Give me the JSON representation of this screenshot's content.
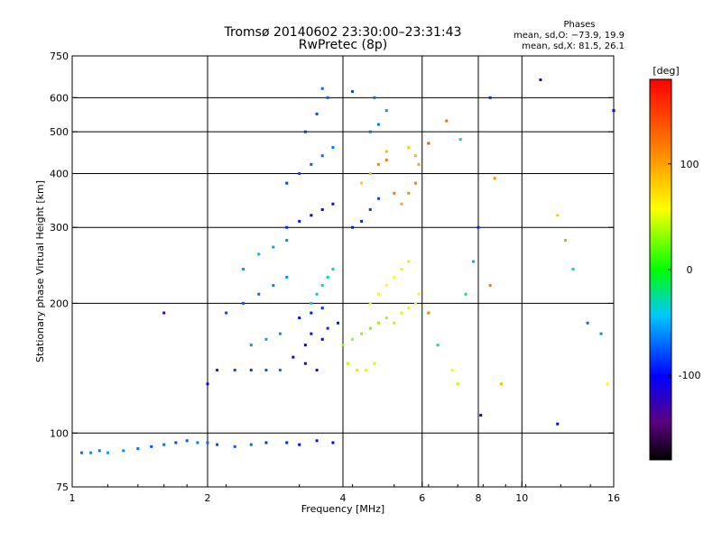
{
  "header": {
    "title_line1": "Tromsø 20140602 23:30:00–23:31:43",
    "title_line2": "RwPretec (8p)"
  },
  "stats": {
    "heading": "Phases",
    "line1": "mean, sd,O: −73.9, 19.9",
    "line2": "mean, sd,X:  81.5, 26.1"
  },
  "chart_data": {
    "type": "scatter",
    "xlabel": "Frequency [MHz]",
    "ylabel": "Stationary phase Virtual Height [km]",
    "xscale": "log",
    "yscale": "log",
    "xlim": [
      1,
      16
    ],
    "ylim": [
      75,
      750
    ],
    "x_ticks": [
      1,
      2,
      4,
      6,
      8,
      10,
      16
    ],
    "x_tick_labels": [
      "1",
      "2",
      "4",
      "6",
      "8",
      "10",
      "16"
    ],
    "x_grid": [
      2,
      4,
      6,
      8,
      10
    ],
    "y_ticks": [
      75,
      100,
      200,
      300,
      400,
      500,
      600,
      750
    ],
    "y_tick_labels": [
      "75",
      "100",
      "200",
      "300",
      "400",
      "500",
      "600",
      "750"
    ],
    "y_grid": [
      100,
      200,
      300,
      400,
      500,
      600
    ],
    "colorbar": {
      "label": "[deg]",
      "range": [
        -180,
        180
      ],
      "ticks": [
        100,
        0,
        -100
      ],
      "tick_labels": [
        "100",
        "0",
        "-100"
      ]
    },
    "series": [
      {
        "points": [
          [
            1.05,
            90,
            -70
          ],
          [
            1.1,
            90,
            -60
          ],
          [
            1.15,
            91,
            -65
          ],
          [
            1.2,
            90,
            -55
          ],
          [
            1.3,
            91,
            -60
          ],
          [
            1.4,
            92,
            -70
          ],
          [
            1.5,
            93,
            -75
          ],
          [
            1.6,
            94,
            -70
          ],
          [
            1.7,
            95,
            -80
          ],
          [
            1.8,
            96,
            -75
          ],
          [
            1.9,
            95,
            -65
          ],
          [
            2.0,
            95,
            -70
          ],
          [
            2.1,
            94,
            -80
          ],
          [
            2.3,
            93,
            -75
          ],
          [
            2.5,
            94,
            -70
          ],
          [
            2.7,
            95,
            -85
          ],
          [
            3.0,
            95,
            -90
          ],
          [
            3.2,
            94,
            -100
          ],
          [
            3.5,
            96,
            -95
          ],
          [
            3.8,
            95,
            -105
          ],
          [
            2.0,
            130,
            -100
          ],
          [
            2.1,
            140,
            -90
          ],
          [
            2.3,
            140,
            -80
          ],
          [
            2.5,
            140,
            -85
          ],
          [
            2.7,
            140,
            -75
          ],
          [
            2.9,
            140,
            -70
          ],
          [
            2.5,
            160,
            -60
          ],
          [
            2.7,
            165,
            -55
          ],
          [
            2.9,
            170,
            -60
          ],
          [
            2.2,
            190,
            -80
          ],
          [
            2.4,
            200,
            -75
          ],
          [
            2.6,
            210,
            -70
          ],
          [
            2.8,
            220,
            -65
          ],
          [
            3.0,
            230,
            -60
          ],
          [
            2.4,
            240,
            -55
          ],
          [
            2.6,
            260,
            -50
          ],
          [
            2.8,
            270,
            -55
          ],
          [
            3.0,
            280,
            -60
          ],
          [
            3.1,
            150,
            -110
          ],
          [
            3.3,
            145,
            -115
          ],
          [
            3.5,
            140,
            -120
          ],
          [
            3.3,
            160,
            -105
          ],
          [
            3.6,
            165,
            -100
          ],
          [
            3.4,
            170,
            -95
          ],
          [
            3.7,
            175,
            -90
          ],
          [
            3.9,
            180,
            -95
          ],
          [
            3.0,
            300,
            -90
          ],
          [
            3.2,
            310,
            -95
          ],
          [
            3.4,
            320,
            -100
          ],
          [
            3.6,
            330,
            -105
          ],
          [
            3.8,
            340,
            -110
          ],
          [
            3.0,
            380,
            -85
          ],
          [
            3.2,
            400,
            -80
          ],
          [
            3.4,
            420,
            -75
          ],
          [
            3.6,
            440,
            -70
          ],
          [
            3.8,
            460,
            -65
          ],
          [
            3.3,
            500,
            -85
          ],
          [
            3.5,
            550,
            -80
          ],
          [
            3.7,
            600,
            -75
          ],
          [
            3.6,
            630,
            -70
          ],
          [
            3.4,
            200,
            -40
          ],
          [
            3.5,
            210,
            -35
          ],
          [
            3.6,
            220,
            -30
          ],
          [
            3.7,
            230,
            -25
          ],
          [
            3.8,
            240,
            -30
          ],
          [
            3.2,
            185,
            -100
          ],
          [
            3.4,
            190,
            -95
          ],
          [
            3.6,
            195,
            -90
          ],
          [
            4.0,
            160,
            30
          ],
          [
            4.2,
            165,
            35
          ],
          [
            4.4,
            170,
            30
          ],
          [
            4.6,
            175,
            25
          ],
          [
            4.8,
            180,
            30
          ],
          [
            5.0,
            185,
            35
          ],
          [
            4.1,
            145,
            40
          ],
          [
            4.3,
            140,
            45
          ],
          [
            4.5,
            140,
            50
          ],
          [
            4.7,
            145,
            45
          ],
          [
            4.6,
            200,
            50
          ],
          [
            4.8,
            210,
            55
          ],
          [
            5.0,
            220,
            60
          ],
          [
            5.2,
            230,
            55
          ],
          [
            5.4,
            240,
            50
          ],
          [
            5.6,
            250,
            45
          ],
          [
            5.2,
            180,
            40
          ],
          [
            5.4,
            190,
            45
          ],
          [
            5.6,
            195,
            50
          ],
          [
            5.8,
            200,
            55
          ],
          [
            5.9,
            210,
            60
          ],
          [
            4.2,
            300,
            -95
          ],
          [
            4.4,
            310,
            -90
          ],
          [
            4.6,
            330,
            -85
          ],
          [
            4.8,
            350,
            -80
          ],
          [
            4.4,
            380,
            80
          ],
          [
            4.6,
            400,
            90
          ],
          [
            4.8,
            420,
            110
          ],
          [
            5.0,
            430,
            120
          ],
          [
            5.2,
            360,
            120
          ],
          [
            5.4,
            340,
            100
          ],
          [
            5.6,
            360,
            110
          ],
          [
            5.8,
            380,
            120
          ],
          [
            5.0,
            450,
            90
          ],
          [
            5.6,
            460,
            80
          ],
          [
            5.8,
            440,
            90
          ],
          [
            5.9,
            420,
            100
          ],
          [
            4.6,
            500,
            -70
          ],
          [
            4.8,
            520,
            -65
          ],
          [
            5.0,
            560,
            -60
          ],
          [
            4.2,
            620,
            -80
          ],
          [
            4.7,
            600,
            -70
          ],
          [
            6.2,
            190,
            120
          ],
          [
            6.5,
            160,
            -20
          ],
          [
            7.0,
            140,
            60
          ],
          [
            7.2,
            130,
            40
          ],
          [
            7.5,
            210,
            -10
          ],
          [
            7.8,
            250,
            -50
          ],
          [
            8.0,
            300,
            -90
          ],
          [
            8.1,
            110,
            -100
          ],
          [
            8.5,
            220,
            120
          ],
          [
            9.0,
            130,
            90
          ],
          [
            8.7,
            390,
            110
          ],
          [
            7.3,
            480,
            -40
          ],
          [
            6.8,
            530,
            130
          ],
          [
            8.5,
            600,
            -90
          ],
          [
            11,
            660,
            -110
          ],
          [
            12,
            320,
            80
          ],
          [
            12.5,
            280,
            100
          ],
          [
            13,
            240,
            -30
          ],
          [
            14,
            180,
            -70
          ],
          [
            15,
            170,
            -60
          ],
          [
            15.5,
            130,
            60
          ],
          [
            16,
            560,
            -100
          ],
          [
            12,
            105,
            -100
          ],
          [
            6.2,
            470,
            140
          ],
          [
            1.6,
            190,
            -130
          ]
        ]
      }
    ]
  }
}
